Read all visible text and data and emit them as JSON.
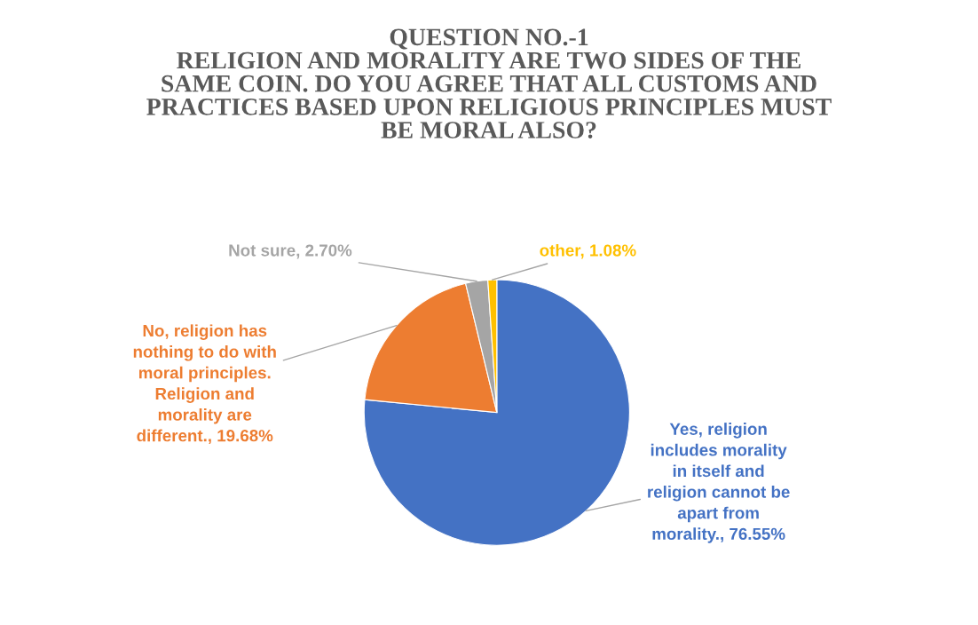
{
  "chart_data": {
    "type": "pie",
    "title": "QUESTION NO.-1 RELIGION AND MORALITY ARE TWO SIDES OF THE SAME COIN. DO YOU AGREE THAT ALL CUSTOMS AND PRACTICES BASED UPON RELIGIOUS PRINCIPLES MUST BE MORAL ALSO?",
    "categories": [
      "Yes, religion includes morality in itself and religion cannot be apart from morality.",
      "No, religion has nothing to do with moral principles. Religion and morality are different.",
      "Not sure",
      "other"
    ],
    "values": [
      76.55,
      19.68,
      2.7,
      1.08
    ],
    "value_labels": [
      "76.55%",
      "19.68%",
      "2.70%",
      "1.08%"
    ],
    "colors": [
      "#4472c4",
      "#ed7d31",
      "#a5a5a5",
      "#ffc000"
    ],
    "legend": false
  }
}
